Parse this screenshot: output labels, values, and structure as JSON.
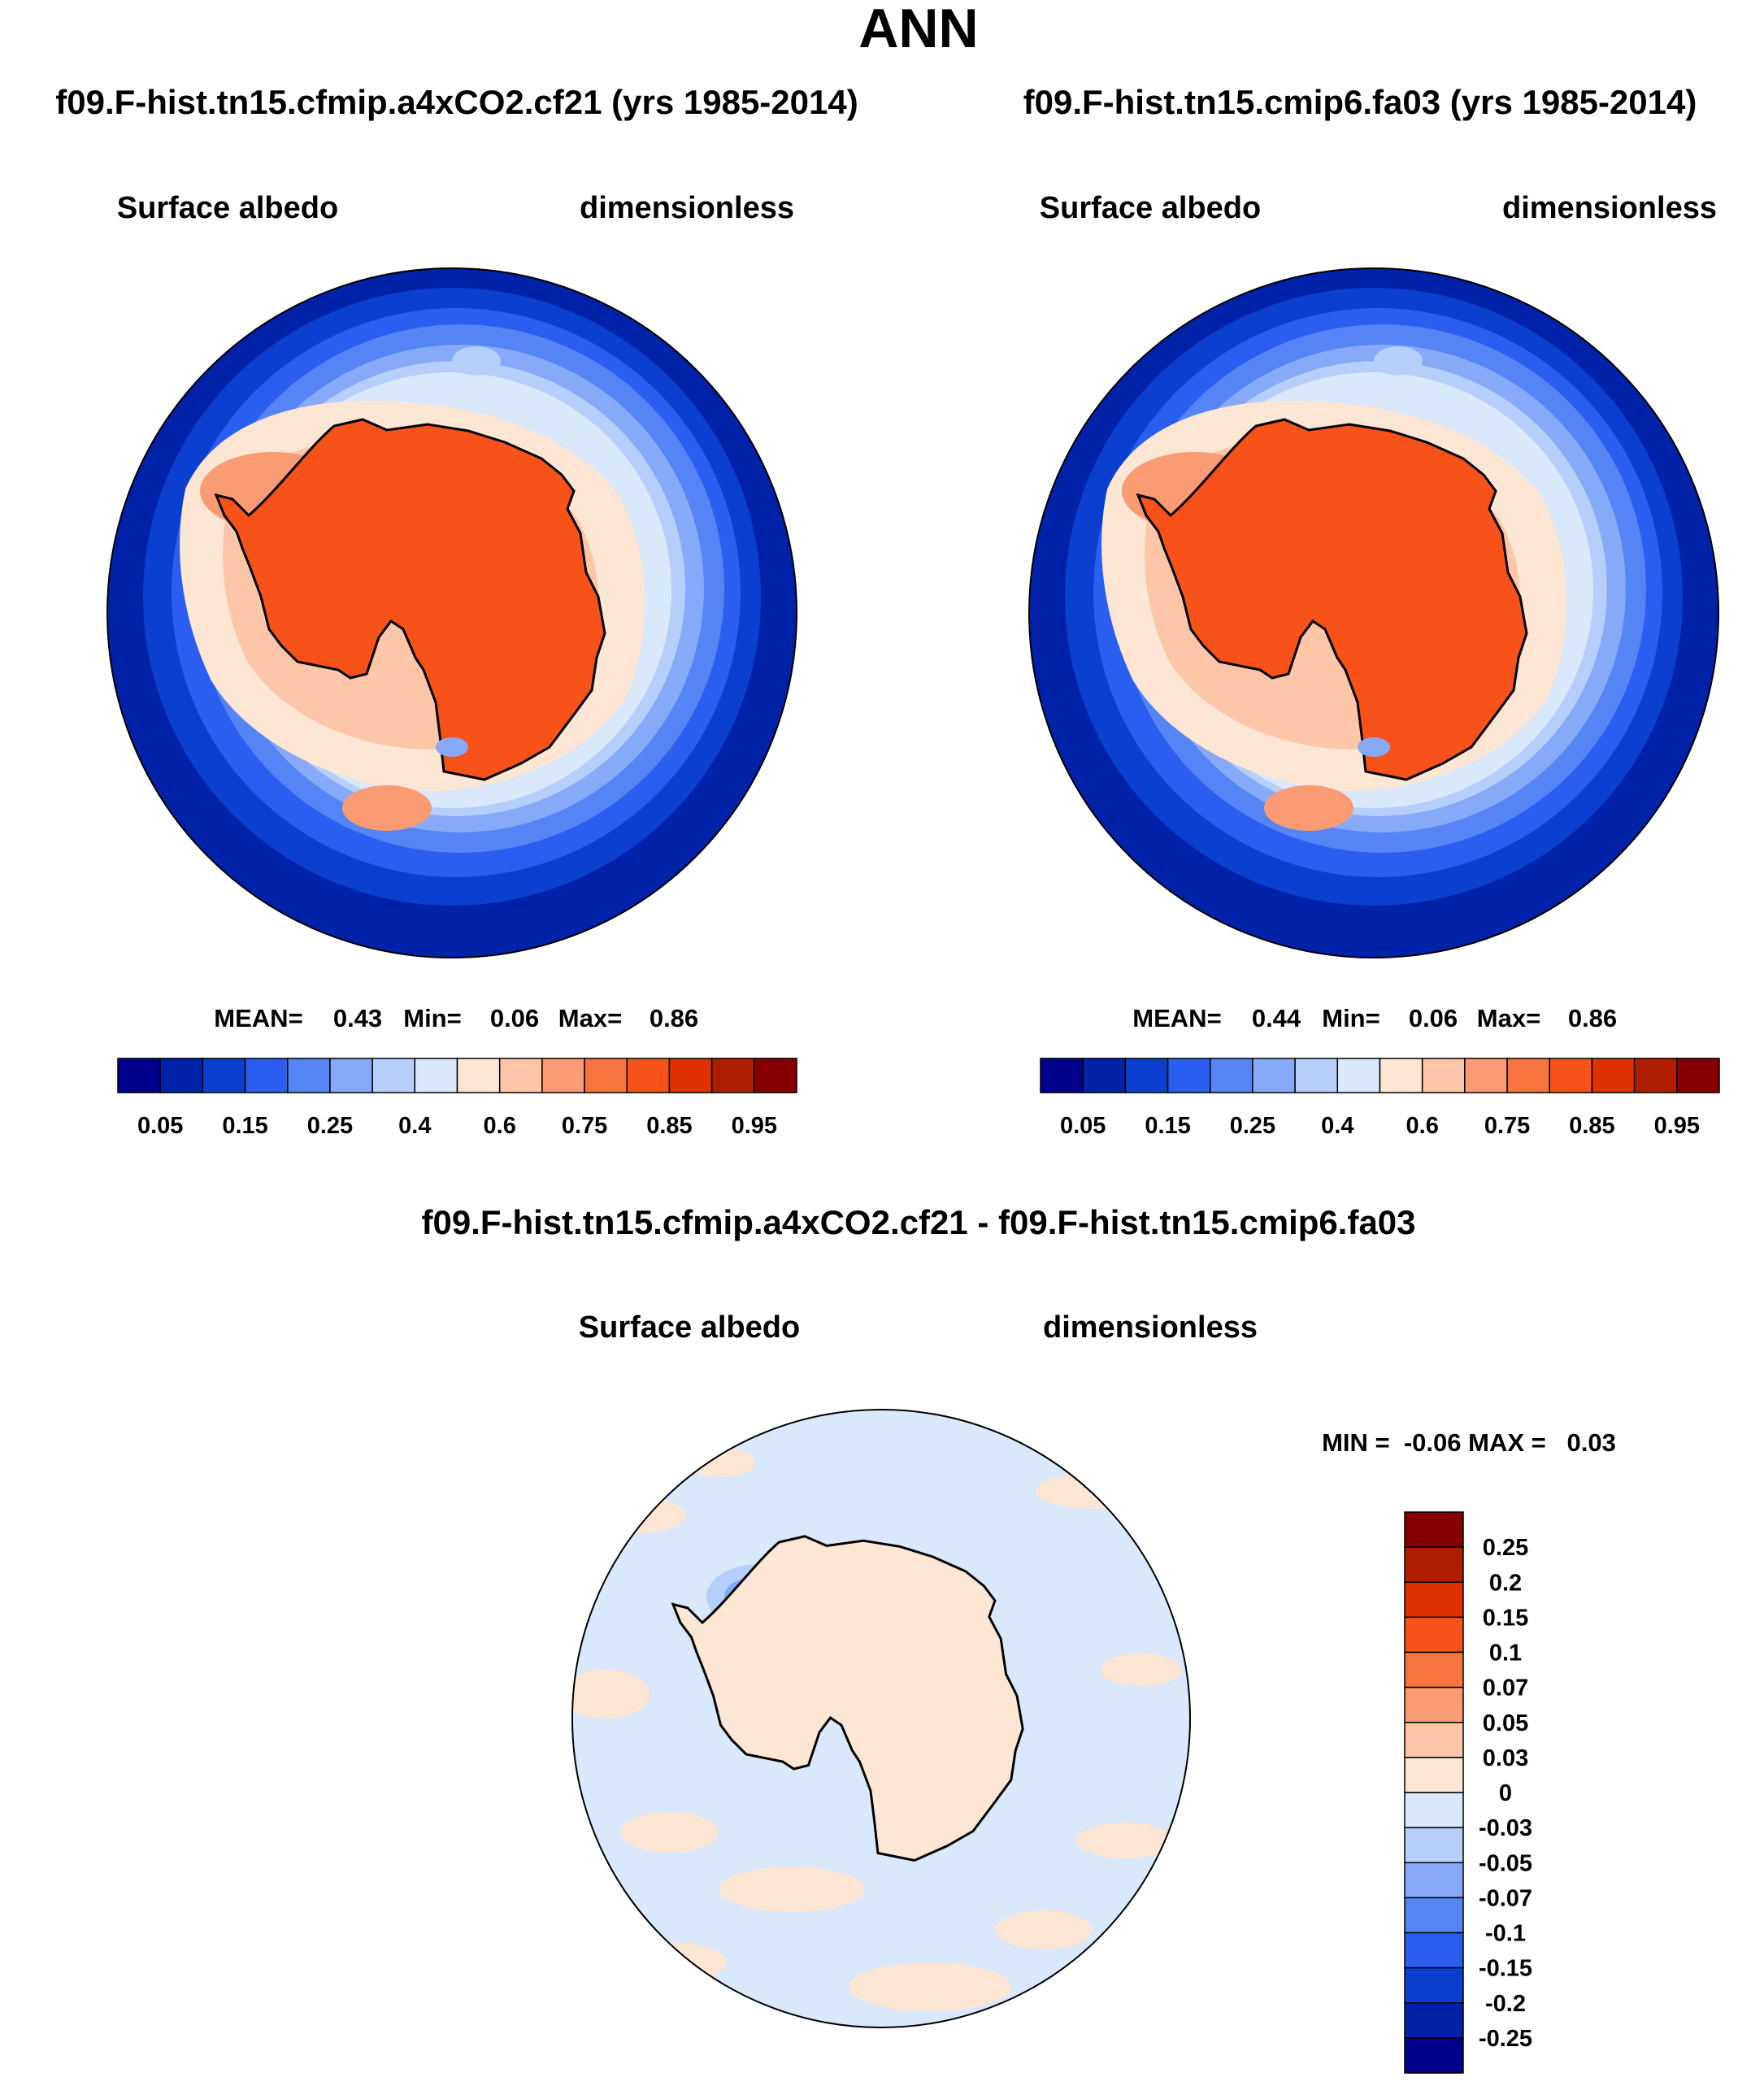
{
  "main_title": "ANN",
  "panels": [
    {
      "case": "f09.F-hist.tn15.cfmip.a4xCO2.cf21 (yrs 1985-2014)",
      "variable": "Surface albedo",
      "units": "dimensionless",
      "stats": {
        "mean_label": "MEAN=",
        "mean": "0.43",
        "min_label": "Min=",
        "min": "0.06",
        "max_label": "Max=",
        "max": "0.86"
      }
    },
    {
      "case": "f09.F-hist.tn15.cmip6.fa03 (yrs 1985-2014)",
      "variable": "Surface albedo",
      "units": "dimensionless",
      "stats": {
        "mean_label": "MEAN=",
        "mean": "0.44",
        "min_label": "Min=",
        "min": "0.06",
        "max_label": "Max=",
        "max": "0.86"
      }
    }
  ],
  "diff_panel": {
    "case": "f09.F-hist.tn15.cfmip.a4xCO2.cf21 - f09.F-hist.tn15.cmip6.fa03",
    "variable": "Surface albedo",
    "units": "dimensionless",
    "minmax": "MIN =  -0.06 MAX =   0.03"
  },
  "colorbar_main": {
    "colors": [
      "#00008a",
      "#0022a8",
      "#0a3fd0",
      "#2a5ef0",
      "#5585f5",
      "#86a9f8",
      "#b5cefa",
      "#d9e8fb",
      "#fde6d3",
      "#fdc6a8",
      "#fa9b73",
      "#f7743f",
      "#f7521a",
      "#e03000",
      "#b01e00",
      "#860000"
    ],
    "labels": [
      "0.05",
      "0.15",
      "0.25",
      "0.4",
      "0.6",
      "0.75",
      "0.85",
      "0.95"
    ]
  },
  "colorbar_diff": {
    "colors_top_to_bottom": [
      "#860000",
      "#b01e00",
      "#e03000",
      "#f7521a",
      "#f7743f",
      "#fa9b73",
      "#fdc6a8",
      "#fde6d3",
      "#d9e8fb",
      "#b5cefa",
      "#86a9f8",
      "#5585f5",
      "#2a5ef0",
      "#0a3fd0",
      "#0022a8",
      "#00008a"
    ],
    "labels_top_to_bottom": [
      "0.25",
      "0.2",
      "0.15",
      "0.1",
      "0.07",
      "0.05",
      "0.03",
      "0",
      "-0.03",
      "-0.05",
      "-0.07",
      "-0.1",
      "-0.15",
      "-0.2",
      "-0.25"
    ]
  }
}
